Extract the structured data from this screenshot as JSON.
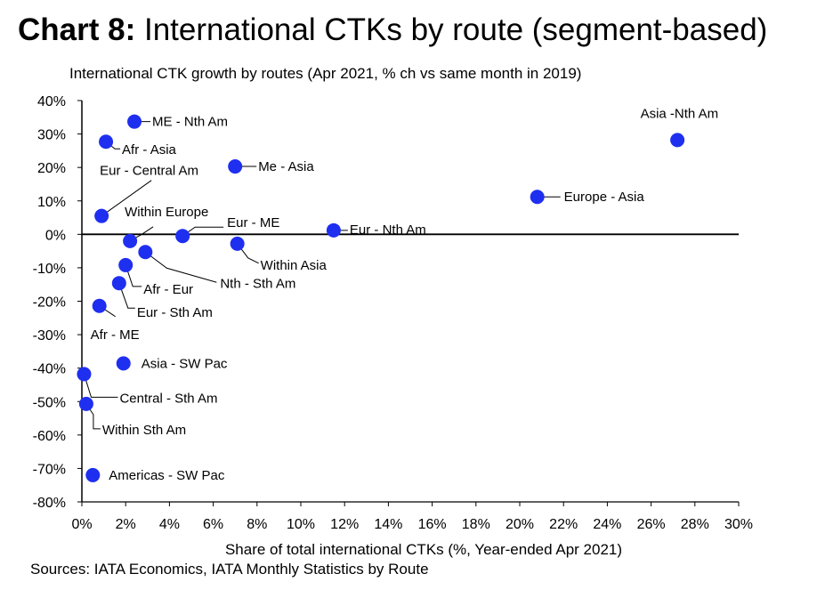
{
  "chart_data": {
    "type": "scatter",
    "title_prefix": "Chart 8:",
    "title": "International CTKs by route (segment-based)",
    "subtitle": "International CTK growth by routes (Apr 2021, % ch vs same month in 2019)",
    "xlabel": "Share of total international CTKs (%, Year-ended Apr 2021)",
    "ylabel": "",
    "source": "Sources: IATA Economics, IATA Monthly Statistics by Route",
    "xlim": [
      0,
      30
    ],
    "ylim": [
      -80,
      40
    ],
    "xticks": [
      0,
      2,
      4,
      6,
      8,
      10,
      12,
      14,
      16,
      18,
      20,
      22,
      24,
      26,
      28,
      30
    ],
    "yticks": [
      40,
      30,
      20,
      10,
      0,
      -10,
      -20,
      -30,
      -40,
      -50,
      -60,
      -70,
      -80
    ],
    "grid": false,
    "marker_color": "#1f2ff0",
    "points": [
      {
        "name": "ME - Nth Am",
        "x": 2.4,
        "y": 33.7
      },
      {
        "name": "Afr - Asia",
        "x": 1.1,
        "y": 27.7
      },
      {
        "name": "Me - Asia",
        "x": 7.0,
        "y": 20.3
      },
      {
        "name": "Eur - Central Am",
        "x": 0.9,
        "y": 5.5
      },
      {
        "name": "Within Europe",
        "x": 2.2,
        "y": -2.0
      },
      {
        "name": "Eur - ME",
        "x": 4.6,
        "y": -0.5
      },
      {
        "name": "Eur - Nth Am",
        "x": 11.5,
        "y": 1.2
      },
      {
        "name": "Within Asia",
        "x": 7.1,
        "y": -2.8
      },
      {
        "name": "Nth - Sth Am",
        "x": 2.9,
        "y": -5.3
      },
      {
        "name": "Afr - Eur",
        "x": 2.0,
        "y": -9.2
      },
      {
        "name": "Eur - Sth Am",
        "x": 1.7,
        "y": -14.6
      },
      {
        "name": "Afr - ME",
        "x": 0.8,
        "y": -21.4
      },
      {
        "name": "Asia - SW Pac",
        "x": 1.9,
        "y": -38.6
      },
      {
        "name": "Central - Sth Am",
        "x": 0.1,
        "y": -41.8
      },
      {
        "name": "Within Sth Am",
        "x": 0.2,
        "y": -50.7
      },
      {
        "name": "Americas - SW Pac",
        "x": 0.5,
        "y": -72.0
      },
      {
        "name": "Europe - Asia",
        "x": 20.8,
        "y": 11.2
      },
      {
        "name": "Asia -Nth Am",
        "x": 27.2,
        "y": 28.2
      }
    ]
  }
}
